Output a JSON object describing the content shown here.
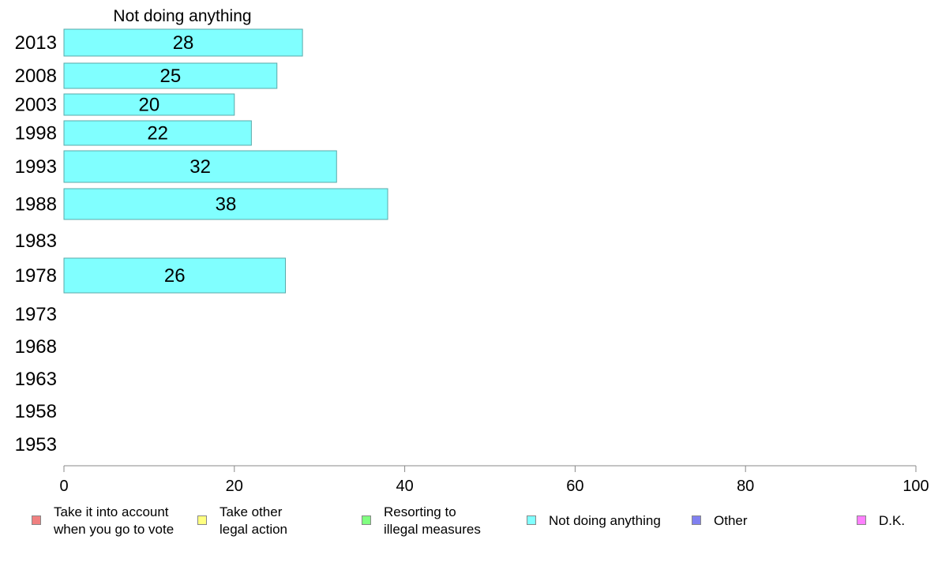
{
  "chart_data": {
    "type": "bar",
    "orientation": "horizontal",
    "title": "Not doing anything",
    "categories": [
      "2013",
      "2008",
      "2003",
      "1998",
      "1993",
      "1988",
      "1983",
      "1978",
      "1973",
      "1968",
      "1963",
      "1958",
      "1953"
    ],
    "series": [
      {
        "name": "Not doing anything",
        "color": "#80ffff",
        "values": [
          28,
          25,
          20,
          22,
          32,
          38,
          null,
          26,
          null,
          null,
          null,
          null,
          null
        ]
      }
    ],
    "xlim": [
      0,
      100
    ],
    "xticks": [
      0,
      20,
      40,
      60,
      80,
      100
    ],
    "grid": false,
    "legend_position": "bottom",
    "legend": [
      {
        "label": "Take it into account\nwhen you go to vote",
        "color": "#f08080"
      },
      {
        "label": "Take other\nlegal action",
        "color": "#ffff80"
      },
      {
        "label": "Resorting to\nillegal measures",
        "color": "#80ff80"
      },
      {
        "label": "Not doing anything",
        "color": "#80ffff"
      },
      {
        "label": "Other",
        "color": "#8080f0"
      },
      {
        "label": "D.K.",
        "color": "#ff80ff"
      }
    ]
  }
}
